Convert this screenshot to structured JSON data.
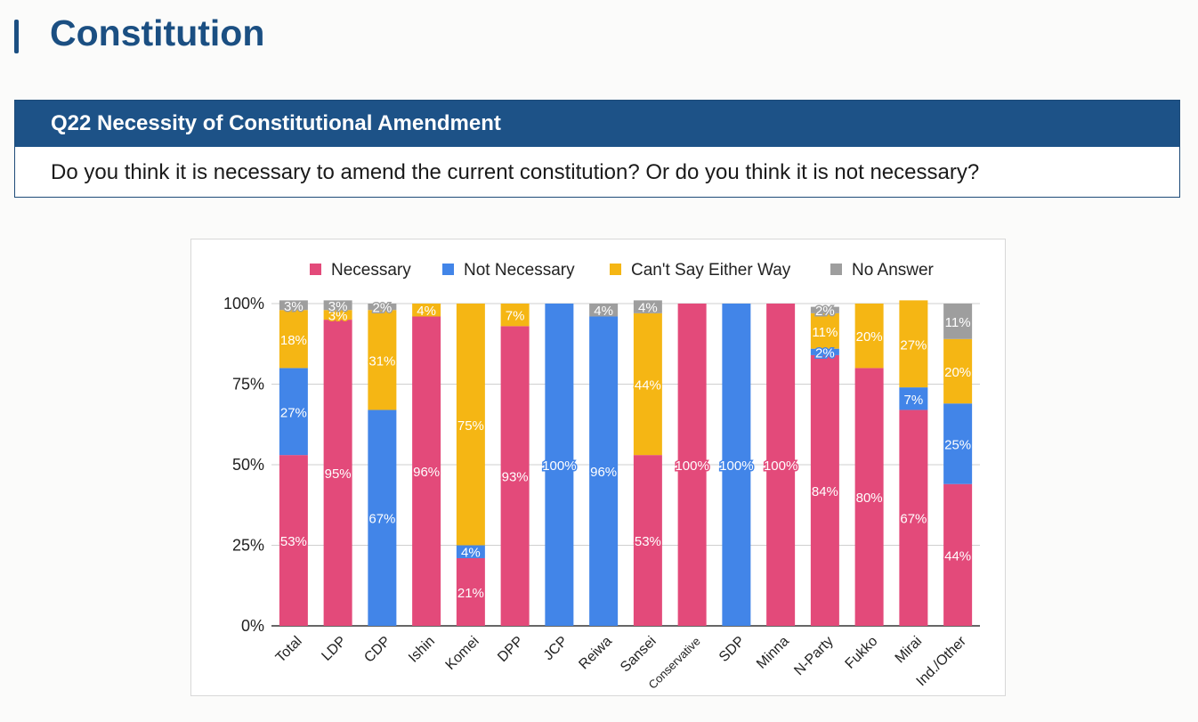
{
  "page": {
    "section_title": "Constitution",
    "question_header": "Q22 Necessity of Constitutional Amendment",
    "question_text": "Do you think it is necessary to amend the current constitution? Or do you think it is not necessary?"
  },
  "chart_data": {
    "type": "bar",
    "stacked": true,
    "title": "",
    "xlabel": "",
    "ylabel": "",
    "ylim": [
      0,
      100
    ],
    "yticks": [
      "0%",
      "25%",
      "50%",
      "75%",
      "100%"
    ],
    "grid": true,
    "legend_position": "top",
    "categories": [
      "Total",
      "LDP",
      "CDP",
      "Ishin",
      "Komei",
      "DPP",
      "JCP",
      "Reiwa",
      "Sansei",
      "Conservative",
      "SDP",
      "Minna",
      "N-Party",
      "Fukko",
      "Mirai",
      "Ind./Other"
    ],
    "series": [
      {
        "name": "Necessary",
        "color": "#e34a7a",
        "values": [
          53,
          95,
          0,
          96,
          21,
          93,
          0,
          0,
          53,
          100,
          0,
          100,
          84,
          80,
          67,
          44
        ]
      },
      {
        "name": "Not Necessary",
        "color": "#4285e8",
        "values": [
          27,
          0,
          67,
          0,
          4,
          0,
          100,
          96,
          0,
          0,
          100,
          0,
          2,
          0,
          7,
          25
        ]
      },
      {
        "name": "Can't Say Either Way",
        "color": "#f5b614",
        "values": [
          18,
          3,
          31,
          4,
          75,
          7,
          0,
          0,
          44,
          0,
          0,
          0,
          11,
          20,
          27,
          20
        ]
      },
      {
        "name": "No Answer",
        "color": "#9e9e9e",
        "values": [
          3,
          3,
          2,
          0,
          0,
          0,
          0,
          4,
          4,
          0,
          0,
          0,
          2,
          0,
          0,
          11
        ]
      }
    ]
  }
}
